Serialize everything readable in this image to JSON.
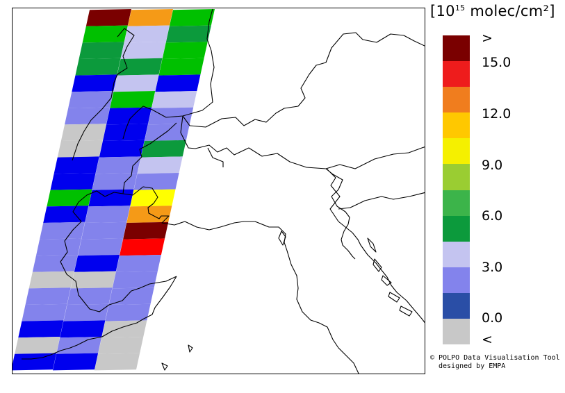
{
  "legend": {
    "title_pre": "[10",
    "title_sup": "15",
    "title_post": " molec/cm²]",
    "labels": [
      ">",
      "15.0",
      "12.0",
      "9.0",
      "6.0",
      "3.0",
      "0.0",
      "<"
    ],
    "colors": [
      "#7a0000",
      "#ee1c1c",
      "#f07d1e",
      "#ffc800",
      "#f5f000",
      "#9acd32",
      "#3cb44a",
      "#0c9a3c",
      "#c4c4f0",
      "#8383ec",
      "#2a4ea6",
      "#c8c8c8"
    ]
  },
  "credits": {
    "line1": "© POLPO Data Visualisation Tool",
    "line2": "designed by EMPA"
  },
  "swath_palette": {
    "gray": "#c8c8c8",
    "blue": "#0000ee",
    "light_blue": "#8383ec",
    "lavender": "#c4c4f0",
    "dark_green": "#0c9a3c",
    "green": "#00c000",
    "yellow": "#ffff00",
    "orange": "#f59a17",
    "red": "#ff0000",
    "dark_red": "#7a0000"
  },
  "swath_rows": [
    [
      "dark_red",
      "orange",
      "green"
    ],
    [
      "green",
      "lavender",
      "dark_green"
    ],
    [
      "dark_green",
      "lavender",
      "green"
    ],
    [
      "dark_green",
      "dark_green",
      "green"
    ],
    [
      "blue",
      "lavender",
      "blue"
    ],
    [
      "light_blue",
      "green",
      "lavender"
    ],
    [
      "light_blue",
      "blue",
      "light_blue"
    ],
    [
      "gray",
      "blue",
      "light_blue"
    ],
    [
      "gray",
      "blue",
      "dark_green"
    ],
    [
      "blue",
      "light_blue",
      "lavender"
    ],
    [
      "blue",
      "light_blue",
      "light_blue"
    ],
    [
      "green",
      "blue",
      "yellow"
    ],
    [
      "blue",
      "light_blue",
      "orange"
    ],
    [
      "light_blue",
      "light_blue",
      "dark_red"
    ],
    [
      "light_blue",
      "light_blue",
      "red"
    ],
    [
      "light_blue",
      "blue",
      "light_blue"
    ],
    [
      "gray",
      "gray",
      "light_blue"
    ],
    [
      "light_blue",
      "light_blue",
      "light_blue"
    ],
    [
      "light_blue",
      "light_blue",
      "light_blue"
    ],
    [
      "blue",
      "blue",
      "gray"
    ],
    [
      "gray",
      "light_blue",
      "gray"
    ],
    [
      "blue",
      "blue",
      "gray"
    ]
  ]
}
